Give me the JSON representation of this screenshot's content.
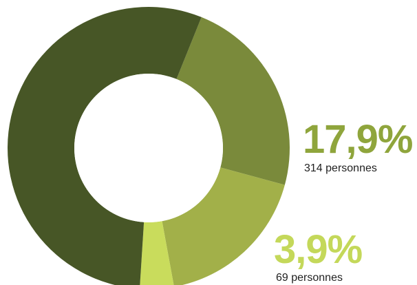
{
  "chart_data": {
    "type": "pie",
    "donut": true,
    "unit": "%",
    "slices": [
      {
        "value": 23.1,
        "color": "#7a8a3b"
      },
      {
        "value": 17.9,
        "color": "#a2b049",
        "label": "17,9%",
        "sublabel": "314 personnes",
        "label_color": "#8fa53c"
      },
      {
        "value": 3.9,
        "color": "#c9dc5c",
        "label": "3,9%",
        "sublabel": "69 personnes",
        "label_color": "#c4d85a"
      },
      {
        "value": 55.1,
        "color": "#475626"
      }
    ],
    "start_angle_deg": 22,
    "direction": "clockwise"
  }
}
